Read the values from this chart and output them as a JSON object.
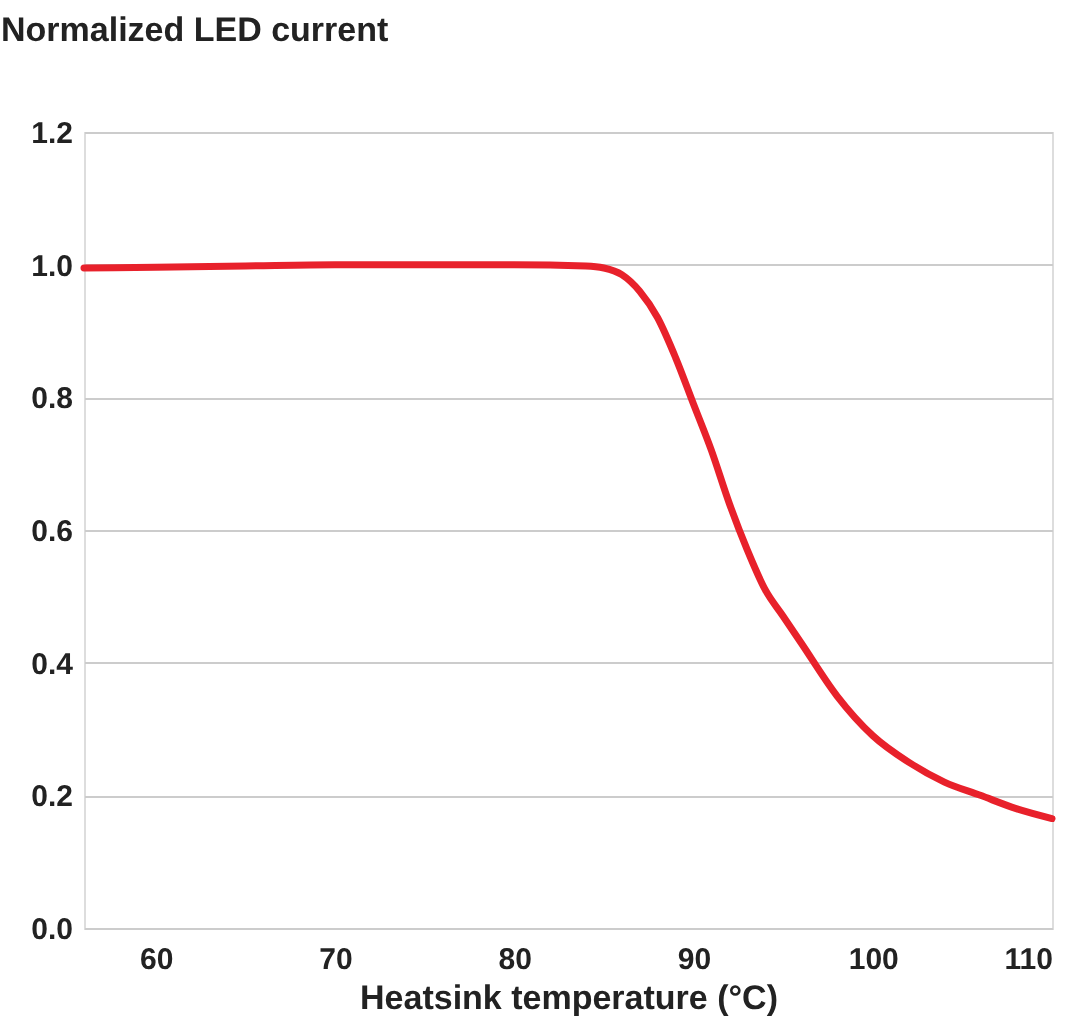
{
  "chart_data": {
    "type": "line",
    "xlabel": "Heatsink temperature (°C)",
    "ylabel": "Normalized LED current",
    "x": [
      56,
      60,
      65,
      70,
      75,
      80,
      84,
      85,
      86,
      87,
      88,
      89,
      90,
      91,
      92,
      93,
      94,
      95,
      96,
      98,
      100,
      102,
      104,
      106,
      108,
      110
    ],
    "series": [
      {
        "color": "#e8212b",
        "values": [
          0.995,
          0.996,
          0.998,
          1.0,
          1.0,
          1.0,
          0.998,
          0.995,
          0.985,
          0.96,
          0.92,
          0.86,
          0.79,
          0.72,
          0.64,
          0.57,
          0.51,
          0.47,
          0.43,
          0.35,
          0.29,
          0.25,
          0.22,
          0.2,
          0.18,
          0.165
        ]
      }
    ],
    "xlim": [
      56,
      110
    ],
    "xticks": [
      60,
      70,
      80,
      90,
      100,
      110
    ],
    "ylim": [
      0,
      1.2
    ],
    "yticks": [
      {
        "value": 0,
        "label": "0.0"
      },
      {
        "value": 0.2,
        "label": "0.2"
      },
      {
        "value": 0.4,
        "label": "0.4"
      },
      {
        "value": 0.6,
        "label": "0.6"
      },
      {
        "value": 0.8,
        "label": "0.8"
      },
      {
        "value": 1.0,
        "label": "1.0"
      },
      {
        "value": 1.2,
        "label": "1.2"
      }
    ],
    "grid": "y",
    "marker": "none",
    "line_style": "solid",
    "legend": false
  }
}
